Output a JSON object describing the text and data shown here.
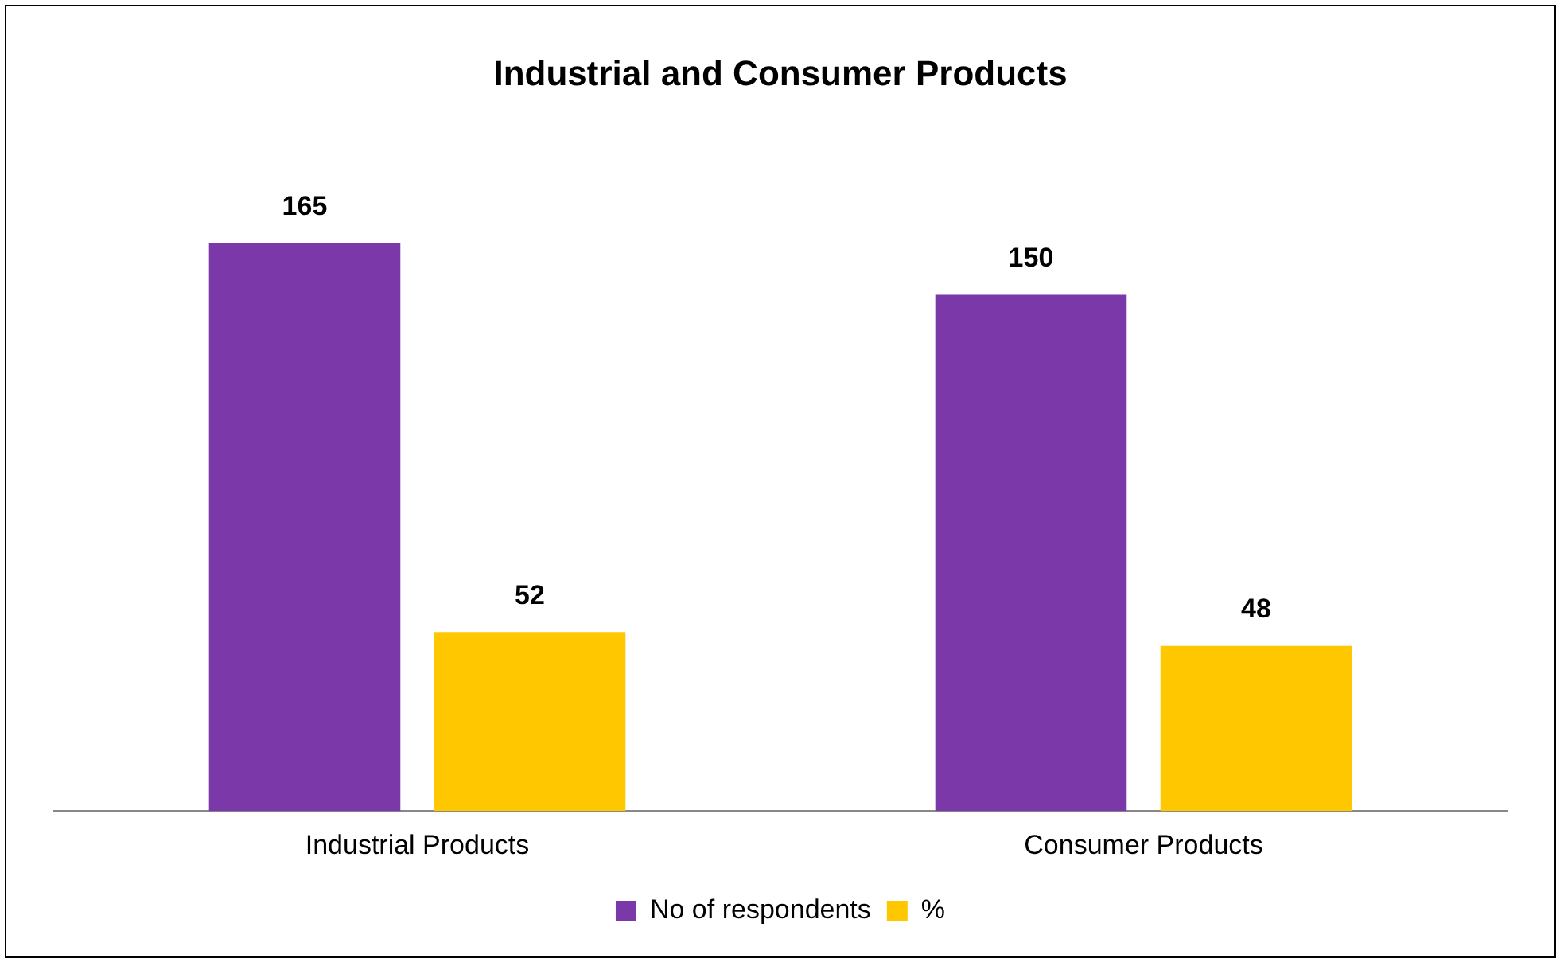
{
  "chart_data": {
    "type": "bar",
    "title": "Industrial and Consumer Products",
    "categories": [
      "Industrial Products",
      "Consumer Products"
    ],
    "series": [
      {
        "name": "No of respondents",
        "color": "#7a38a8",
        "values": [
          165,
          150
        ]
      },
      {
        "name": "%",
        "color": "#ffc700",
        "values": [
          52,
          48
        ]
      }
    ],
    "data_labels": true,
    "legend": "bottom",
    "grid": false
  }
}
